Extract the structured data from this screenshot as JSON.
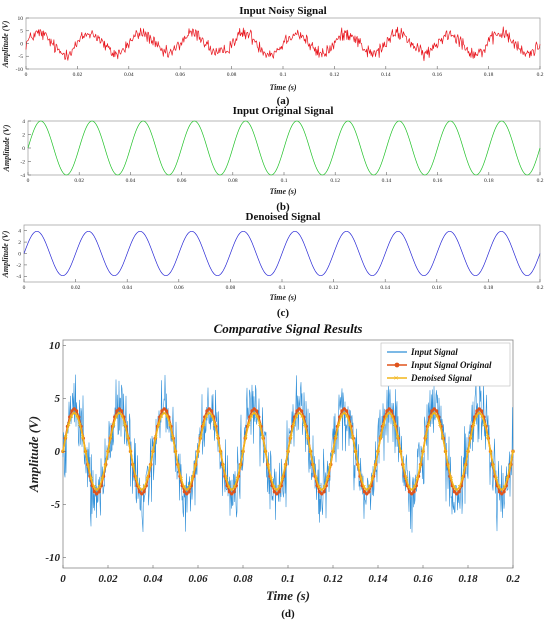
{
  "chart_data": [
    {
      "type": "line",
      "title": "Input Noisy Signal",
      "xlabel": "Time (s)",
      "ylabel": "Amplitude (V)",
      "caption": "(a)",
      "xlim": [
        0,
        0.2
      ],
      "ylim": [
        -10,
        10
      ],
      "xticks": [
        0,
        0.02,
        0.04,
        0.06,
        0.08,
        0.1,
        0.12,
        0.14,
        0.16,
        0.18,
        0.2
      ],
      "xtick_labels": [
        "0",
        "0.02",
        "0.04",
        "0.06",
        "0.08",
        "0.1",
        "0.12",
        "0.14",
        "0.16",
        "0.18",
        "0.2"
      ],
      "yticks": [
        -10,
        -5,
        0,
        5,
        10
      ],
      "ytick_labels": [
        "-10",
        "-5",
        "0",
        "5",
        "10"
      ],
      "grid": false,
      "series": [
        {
          "color": "#e8141c",
          "signal": "sine + noise",
          "frequency_hz": 50,
          "amplitude": 4,
          "noise_amplitude": 3.5
        }
      ]
    },
    {
      "type": "line",
      "title": "Input Original Signal",
      "xlabel": "Time (s)",
      "ylabel": "Amplitude (V)",
      "caption": "(b)",
      "xlim": [
        0,
        0.2
      ],
      "ylim": [
        -4,
        4
      ],
      "xticks": [
        0,
        0.02,
        0.04,
        0.06,
        0.08,
        0.1,
        0.12,
        0.14,
        0.16,
        0.18,
        0.2
      ],
      "xtick_labels": [
        "0",
        "0.02",
        "0.04",
        "0.06",
        "0.08",
        "0.1",
        "0.12",
        "0.14",
        "0.16",
        "0.18",
        "0.2"
      ],
      "yticks": [
        -4,
        -2,
        0,
        2,
        4
      ],
      "ytick_labels": [
        "-4",
        "-2",
        "0",
        "2",
        "4"
      ],
      "grid": false,
      "series": [
        {
          "color": "#22c22a",
          "signal": "sine",
          "frequency_hz": 50,
          "amplitude": 4
        }
      ]
    },
    {
      "type": "line",
      "title": "Denoised Signal",
      "xlabel": "Time (s)",
      "ylabel": "Amplitude (V)",
      "caption": "(c)",
      "xlim": [
        0,
        0.2
      ],
      "ylim": [
        -5,
        5
      ],
      "xticks": [
        0,
        0.02,
        0.04,
        0.06,
        0.08,
        0.1,
        0.12,
        0.14,
        0.16,
        0.18,
        0.2
      ],
      "xtick_labels": [
        "0",
        "0.02",
        "0.04",
        "0.06",
        "0.08",
        "0.1",
        "0.12",
        "0.14",
        "0.16",
        "0.18",
        "0.2"
      ],
      "yticks": [
        -4,
        -2,
        0,
        2,
        4
      ],
      "ytick_labels": [
        "-4",
        "-2",
        "0",
        "2",
        "4"
      ],
      "grid": false,
      "series": [
        {
          "color": "#2b2bd6",
          "signal": "sine",
          "frequency_hz": 50,
          "amplitude": 3.9
        }
      ]
    },
    {
      "type": "line",
      "title": "Comparative Signal Results",
      "xlabel": "Time (s)",
      "ylabel": "Amplitude (V)",
      "caption": "(d)",
      "xlim": [
        0,
        0.2
      ],
      "ylim": [
        -11,
        10.5
      ],
      "xticks": [
        0,
        0.02,
        0.04,
        0.06,
        0.08,
        0.1,
        0.12,
        0.14,
        0.16,
        0.18,
        0.2
      ],
      "xtick_labels": [
        "0",
        "0.02",
        "0.04",
        "0.06",
        "0.08",
        "0.1",
        "0.12",
        "0.14",
        "0.16",
        "0.18",
        "0.2"
      ],
      "yticks": [
        -10,
        -5,
        0,
        5,
        10
      ],
      "ytick_labels": [
        "-10",
        "-5",
        "0",
        "5",
        "10"
      ],
      "grid": false,
      "legend": "top-right",
      "series": [
        {
          "name": "Input Signal",
          "color": "#2f8fd8",
          "signal": "sine + noise",
          "frequency_hz": 50,
          "amplitude": 4,
          "noise_amplitude": 4.5
        },
        {
          "name": "Input Signal Original",
          "color": "#e0531c",
          "signal": "sine",
          "frequency_hz": 50,
          "amplitude": 4
        },
        {
          "name": "Denoised Signal",
          "color": "#f2b51a",
          "signal": "sine",
          "frequency_hz": 50,
          "amplitude": 3.6
        }
      ]
    }
  ]
}
